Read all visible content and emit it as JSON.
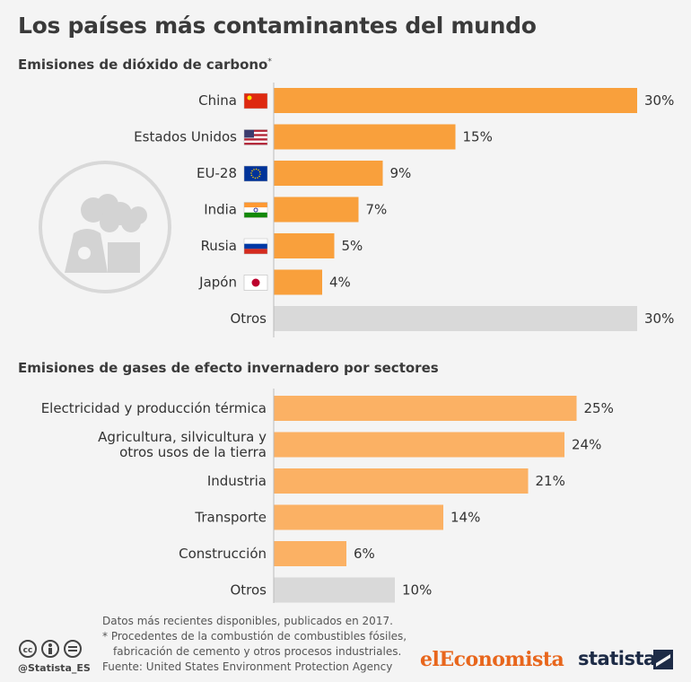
{
  "title": "Los países más contaminantes del mundo",
  "section1": {
    "subtitle": "Emisiones de dióxido de carbono",
    "asterisk": "*"
  },
  "section2": {
    "subtitle": "Emisiones de gases de efecto invernadero por sectores"
  },
  "chart_data": [
    {
      "type": "bar",
      "orientation": "horizontal",
      "categories": [
        "China",
        "Estados Unidos",
        "EU-28",
        "India",
        "Rusia",
        "Japón",
        "Otros"
      ],
      "values": [
        30,
        15,
        9,
        7,
        5,
        4,
        30
      ],
      "value_labels": [
        "30%",
        "15%",
        "9%",
        "7%",
        "5%",
        "4%",
        "30%"
      ],
      "flags": [
        "flag-china",
        "flag-usa",
        "flag-eu",
        "flag-india",
        "flag-russia",
        "flag-japan",
        ""
      ],
      "colors": [
        "#f9a03c",
        "#f9a03c",
        "#f9a03c",
        "#f9a03c",
        "#f9a03c",
        "#f9a03c",
        "#d9d9d9"
      ],
      "xlim": [
        0,
        30
      ]
    },
    {
      "type": "bar",
      "orientation": "horizontal",
      "categories": [
        "Electricidad y producción térmica",
        "Agricultura, silvicultura y\notros usos de la tierra",
        "Industria",
        "Transporte",
        "Construcción",
        "Otros"
      ],
      "values": [
        25,
        24,
        21,
        14,
        6,
        10
      ],
      "value_labels": [
        "25%",
        "24%",
        "21%",
        "14%",
        "6%",
        "10%"
      ],
      "colors": [
        "#fbb164",
        "#fbb164",
        "#fbb164",
        "#fbb164",
        "#fbb164",
        "#d9d9d9"
      ],
      "xlim": [
        0,
        30
      ]
    }
  ],
  "footer": {
    "note1": "Datos más recientes disponibles, publicados en 2017.",
    "note2": "* Procedentes de la combustión de combustibles fósiles,",
    "note3": "fabricación de cemento y otros procesos industriales.",
    "source": "Fuente: United States Environment Protection Agency",
    "handle": "@Statista_ES",
    "brand1": "elEconomista",
    "brand2": "statista"
  },
  "icons": [
    "factory-pollution-icon",
    "cc-icon",
    "by-icon",
    "nd-icon",
    "statista-logo-icon"
  ]
}
